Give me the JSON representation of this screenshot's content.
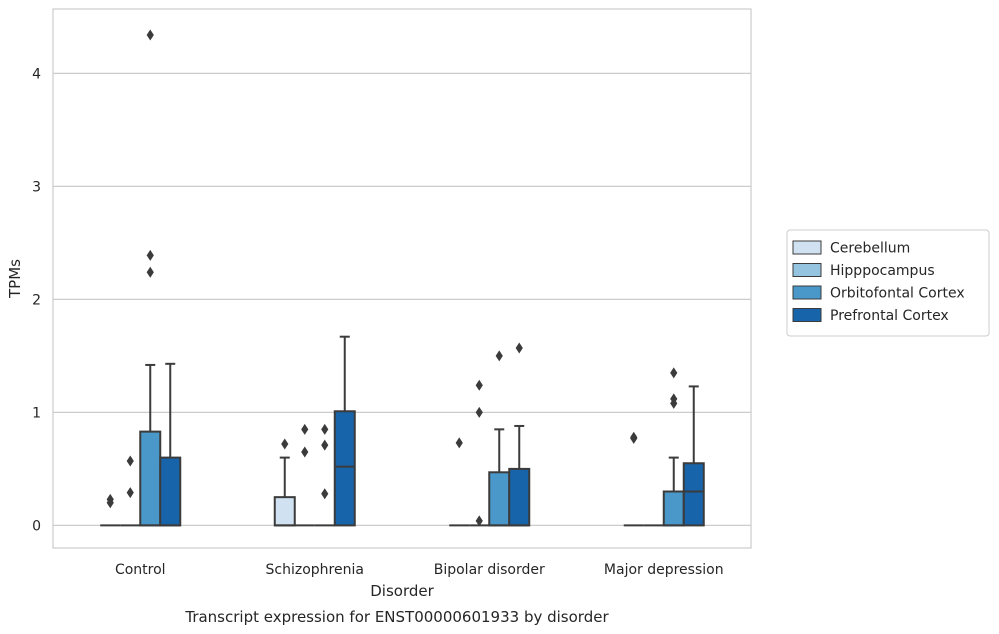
{
  "chart_data": {
    "type": "box",
    "title": "Transcript expression for ENST00000601933 by disorder",
    "xlabel": "Disorder",
    "ylabel": "TPMs",
    "ylim": [
      -0.2,
      4.57
    ],
    "yticks": [
      0,
      1,
      2,
      3,
      4
    ],
    "grid": true,
    "legend_position": "right",
    "categories": [
      "Control",
      "Schizophrenia",
      "Bipolar disorder",
      "Major depression"
    ],
    "series": [
      {
        "name": "Cerebellum",
        "color": "#d0e1f2",
        "boxes": [
          {
            "q1": 0,
            "median": 0,
            "q3": 0,
            "whisker_low": 0,
            "whisker_high": 0,
            "outliers": [
              0.2,
              0.23
            ]
          },
          {
            "q1": 0,
            "median": 0,
            "q3": 0.25,
            "whisker_low": 0,
            "whisker_high": 0.6,
            "outliers": [
              0.72
            ]
          },
          {
            "q1": 0,
            "median": 0,
            "q3": 0,
            "whisker_low": 0,
            "whisker_high": 0,
            "outliers": [
              0.73
            ]
          },
          {
            "q1": 0,
            "median": 0,
            "q3": 0,
            "whisker_low": 0,
            "whisker_high": 0,
            "outliers": [
              0.77,
              0.78
            ]
          }
        ]
      },
      {
        "name": "Hipppocampus",
        "color": "#94c4df",
        "boxes": [
          {
            "q1": 0,
            "median": 0,
            "q3": 0,
            "whisker_low": 0,
            "whisker_high": 0,
            "outliers": [
              0.29,
              0.57
            ]
          },
          {
            "q1": 0,
            "median": 0,
            "q3": 0,
            "whisker_low": 0,
            "whisker_high": 0,
            "outliers": [
              0.65,
              0.85
            ]
          },
          {
            "q1": 0,
            "median": 0,
            "q3": 0,
            "whisker_low": 0,
            "whisker_high": 0,
            "outliers": [
              0.04,
              1.0,
              1.24
            ]
          },
          {
            "q1": 0,
            "median": 0,
            "q3": 0,
            "whisker_low": 0,
            "whisker_high": 0,
            "outliers": []
          }
        ]
      },
      {
        "name": "Orbitofontal Cortex",
        "color": "#4a98c9",
        "boxes": [
          {
            "q1": 0,
            "median": 0,
            "q3": 0.83,
            "whisker_low": 0,
            "whisker_high": 1.42,
            "outliers": [
              2.24,
              2.39,
              4.34
            ]
          },
          {
            "q1": 0,
            "median": 0,
            "q3": 0,
            "whisker_low": 0,
            "whisker_high": 0,
            "outliers": [
              0.28,
              0.71,
              0.85
            ]
          },
          {
            "q1": 0,
            "median": 0,
            "q3": 0.47,
            "whisker_low": 0,
            "whisker_high": 0.85,
            "outliers": [
              1.5
            ]
          },
          {
            "q1": 0,
            "median": 0,
            "q3": 0.3,
            "whisker_low": 0,
            "whisker_high": 0.6,
            "outliers": [
              1.08,
              1.12,
              1.35
            ]
          }
        ]
      },
      {
        "name": "Prefrontal Cortex",
        "color": "#1764ab",
        "boxes": [
          {
            "q1": 0,
            "median": 0,
            "q3": 0.6,
            "whisker_low": 0,
            "whisker_high": 1.43,
            "outliers": []
          },
          {
            "q1": 0,
            "median": 0.52,
            "q3": 1.01,
            "whisker_low": 0,
            "whisker_high": 1.67,
            "outliers": []
          },
          {
            "q1": 0,
            "median": 0,
            "q3": 0.5,
            "whisker_low": 0,
            "whisker_high": 0.88,
            "outliers": [
              1.57
            ]
          },
          {
            "q1": 0,
            "median": 0.3,
            "q3": 0.55,
            "whisker_low": 0,
            "whisker_high": 1.23,
            "outliers": []
          }
        ]
      }
    ]
  }
}
